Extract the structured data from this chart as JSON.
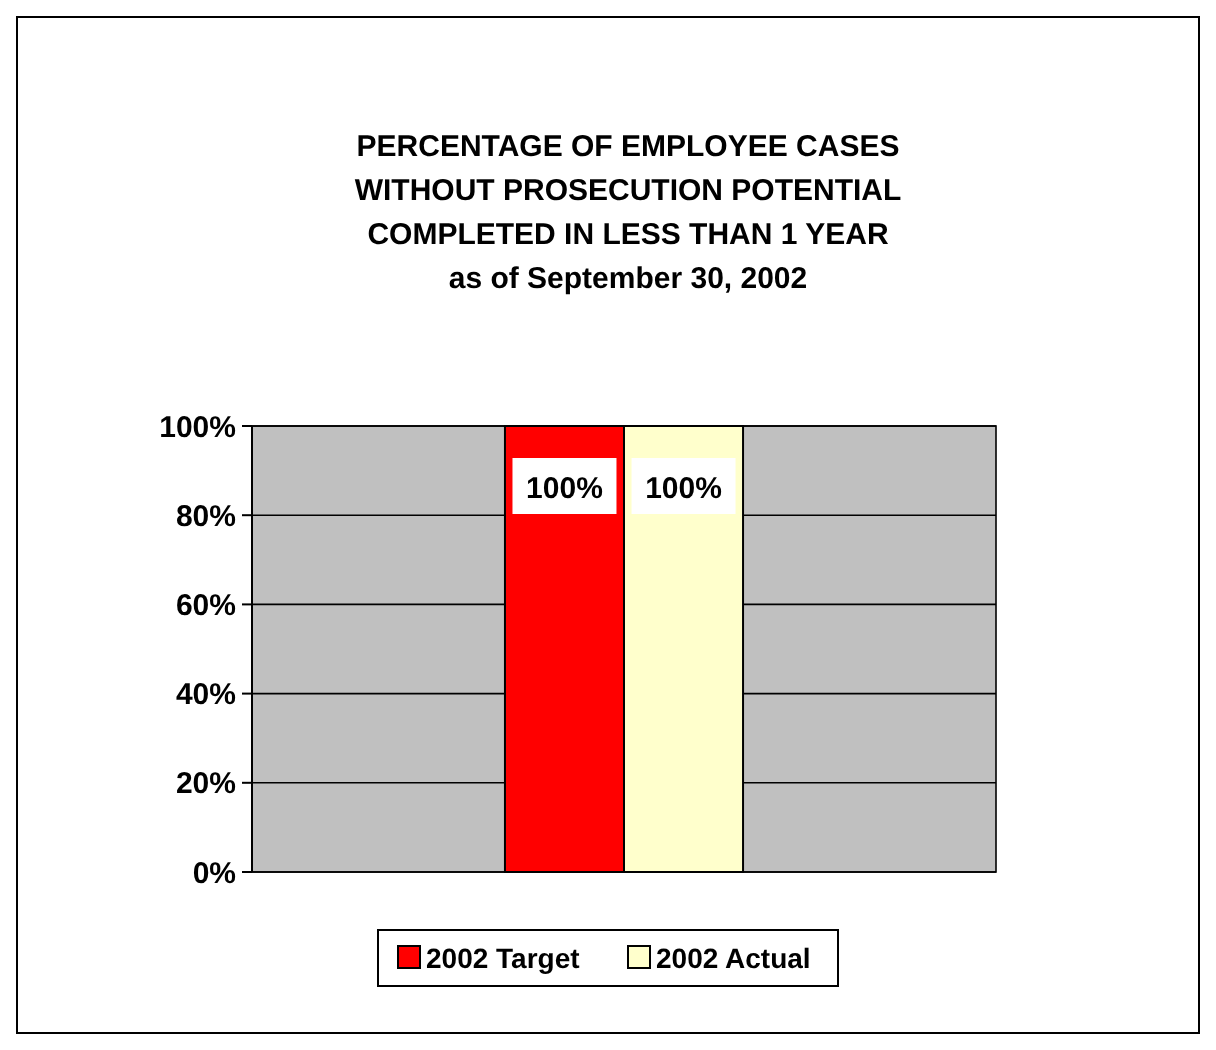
{
  "chart_data": {
    "type": "bar",
    "title": "PERCENTAGE OF EMPLOYEE CASES\nWITHOUT PROSECUTION POTENTIAL\nCOMPLETED IN LESS THAN 1 YEAR\nas of September 30, 2002",
    "categories": [
      null
    ],
    "series": [
      {
        "name": "2002 Target",
        "color": "#ff0000",
        "values": [
          100
        ],
        "value_labels": [
          "100%"
        ]
      },
      {
        "name": "2002 Actual",
        "color": "#ffffcc",
        "values": [
          100
        ],
        "value_labels": [
          "100%"
        ]
      }
    ],
    "ylim": [
      0,
      100
    ],
    "yticks": [
      {
        "value": 0,
        "label": "0%"
      },
      {
        "value": 20,
        "label": "20%"
      },
      {
        "value": 40,
        "label": "40%"
      },
      {
        "value": 60,
        "label": "60%"
      },
      {
        "value": 80,
        "label": "80%"
      },
      {
        "value": 100,
        "label": "100%"
      }
    ],
    "grid": "y",
    "legend": "bottom"
  }
}
